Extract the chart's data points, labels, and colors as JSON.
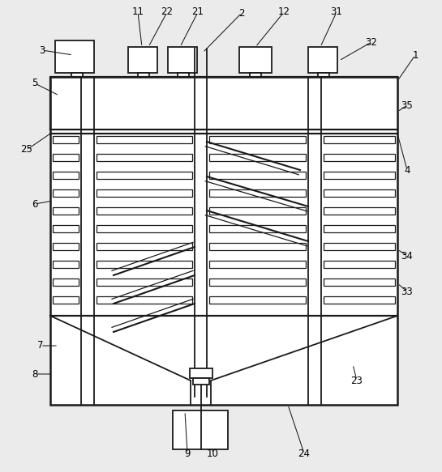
{
  "bg_color": "#ebebeb",
  "line_color": "#1a1a1a",
  "lw": 1.3
}
